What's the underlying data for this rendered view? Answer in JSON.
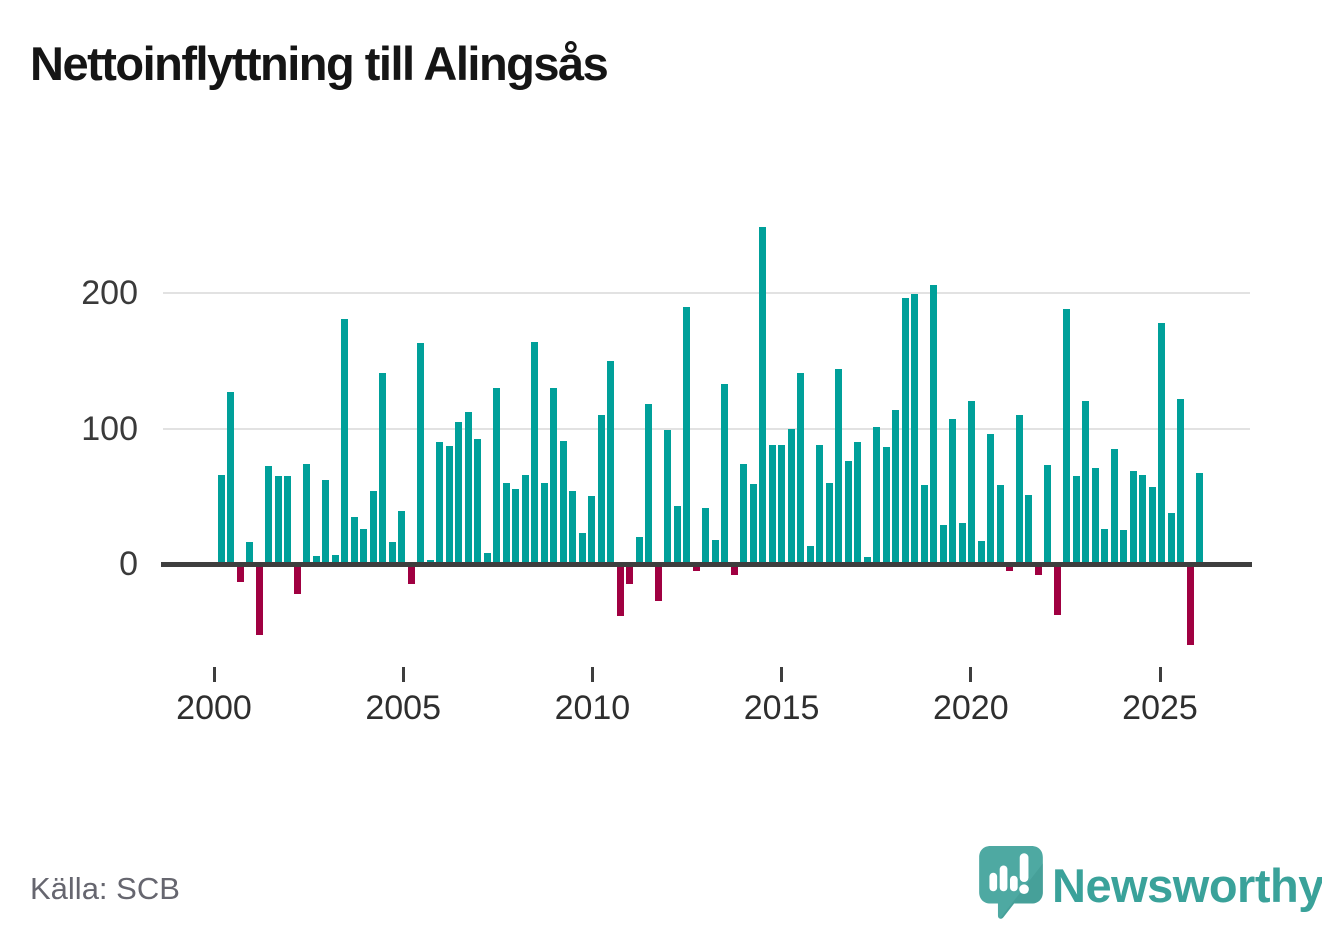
{
  "title": "Nettoinflyttning till Alingsås",
  "source": "Källa: SCB",
  "branding": {
    "logo_text": "Newsworthy",
    "logo_icon": "newsworthy-speech-bubble-bar-chart-icon"
  },
  "colors": {
    "bar_positive": "#00a09a",
    "bar_negative": "#a00041",
    "axis_line": "#3e3e3e",
    "gridline": "#e2e2e2",
    "title_text": "#151515",
    "axis_text": "#3a3a3a",
    "source_text": "#66666f",
    "brand_teal": "#3aa29a",
    "logo_bubble": "#4ea9a2",
    "logo_bubble_shade": "#3f948d",
    "background": "#ffffff"
  },
  "chart_data": {
    "type": "bar",
    "title": "Nettoinflyttning till Alingsås",
    "frequency": "quarterly",
    "start_year": 2000,
    "x_tick_labels": [
      "2000",
      "2005",
      "2010",
      "2015",
      "2020",
      "2025"
    ],
    "y_tick_labels": [
      "0",
      "100",
      "200"
    ],
    "ylim": [
      -75,
      260
    ],
    "grid": "horizontal",
    "legend": "none",
    "series": [
      {
        "year": 2000,
        "quarters": [
          66,
          127,
          -12,
          16
        ]
      },
      {
        "year": 2001,
        "quarters": [
          -51,
          72,
          65,
          65
        ]
      },
      {
        "year": 2002,
        "quarters": [
          -21,
          74,
          6,
          62
        ]
      },
      {
        "year": 2003,
        "quarters": [
          7,
          181,
          35,
          26
        ]
      },
      {
        "year": 2004,
        "quarters": [
          54,
          141,
          16,
          39
        ]
      },
      {
        "year": 2005,
        "quarters": [
          -13,
          163,
          3,
          90
        ]
      },
      {
        "year": 2006,
        "quarters": [
          87,
          105,
          112,
          92
        ]
      },
      {
        "year": 2007,
        "quarters": [
          8,
          130,
          60,
          55
        ]
      },
      {
        "year": 2008,
        "quarters": [
          66,
          164,
          60,
          130
        ]
      },
      {
        "year": 2009,
        "quarters": [
          91,
          54,
          23,
          50
        ]
      },
      {
        "year": 2010,
        "quarters": [
          110,
          150,
          -37,
          -13
        ]
      },
      {
        "year": 2011,
        "quarters": [
          20,
          118,
          -26,
          99
        ]
      },
      {
        "year": 2012,
        "quarters": [
          43,
          190,
          -4,
          41
        ]
      },
      {
        "year": 2013,
        "quarters": [
          18,
          133,
          -7,
          74
        ]
      },
      {
        "year": 2014,
        "quarters": [
          59,
          249,
          88,
          88
        ]
      },
      {
        "year": 2015,
        "quarters": [
          100,
          141,
          13,
          88
        ]
      },
      {
        "year": 2016,
        "quarters": [
          60,
          144,
          76,
          90
        ]
      },
      {
        "year": 2017,
        "quarters": [
          5,
          101,
          86,
          114
        ]
      },
      {
        "year": 2018,
        "quarters": [
          196,
          199,
          58,
          206
        ]
      },
      {
        "year": 2019,
        "quarters": [
          29,
          107,
          30,
          120
        ]
      },
      {
        "year": 2020,
        "quarters": [
          17,
          96,
          58,
          -4
        ]
      },
      {
        "year": 2021,
        "quarters": [
          110,
          51,
          -7,
          73
        ]
      },
      {
        "year": 2022,
        "quarters": [
          -36,
          188,
          65,
          120
        ]
      },
      {
        "year": 2023,
        "quarters": [
          71,
          26,
          85,
          25
        ]
      },
      {
        "year": 2024,
        "quarters": [
          69,
          66,
          57,
          178
        ]
      },
      {
        "year": 2025,
        "quarters": [
          38,
          122,
          -58,
          67
        ]
      }
    ]
  }
}
